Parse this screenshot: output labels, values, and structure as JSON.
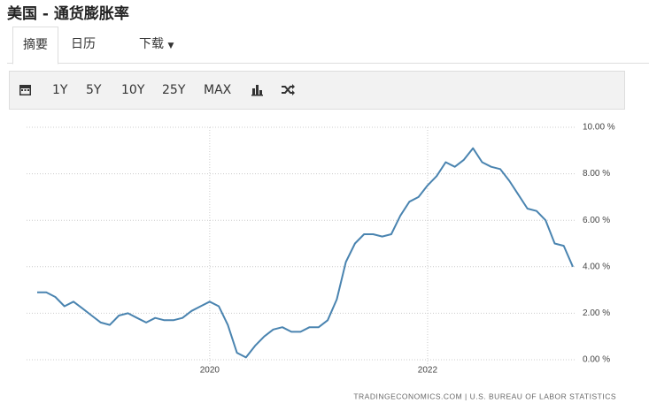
{
  "header": {
    "title": "美国 - 通货膨胀率"
  },
  "tabs": [
    "摘要",
    "日历",
    "下载"
  ],
  "toolbar": [
    "1Y",
    "5Y",
    "10Y",
    "25Y",
    "MAX"
  ],
  "chart_data": {
    "type": "line",
    "source": "TRADINGECONOMICS.COM  |  U.S. BUREAU OF LABOR STATISTICS",
    "categories": [
      null,
      null,
      null,
      null,
      null,
      null,
      null,
      null,
      null,
      null,
      null,
      null,
      null,
      null,
      null,
      null,
      null,
      null,
      null,
      "2020",
      null,
      null,
      null,
      null,
      null,
      null,
      null,
      null,
      null,
      null,
      null,
      null,
      null,
      null,
      null,
      null,
      null,
      null,
      null,
      null,
      null,
      null,
      null,
      "2022",
      null,
      null,
      null,
      null,
      null,
      null,
      null,
      null,
      null,
      null,
      null,
      null,
      null,
      null,
      null,
      null
    ],
    "series": [
      {
        "name": "US Inflation Rate",
        "color": "#4a84b0",
        "values": [
          2.9,
          2.9,
          2.7,
          2.3,
          2.5,
          2.2,
          1.9,
          1.6,
          1.5,
          1.9,
          2.0,
          1.8,
          1.6,
          1.8,
          1.7,
          1.7,
          1.8,
          2.1,
          2.3,
          2.5,
          2.3,
          1.5,
          0.3,
          0.1,
          0.6,
          1.0,
          1.3,
          1.4,
          1.2,
          1.2,
          1.4,
          1.4,
          1.7,
          2.6,
          4.2,
          5.0,
          5.4,
          5.4,
          5.3,
          5.4,
          6.2,
          6.8,
          7.0,
          7.5,
          7.9,
          8.5,
          8.3,
          8.6,
          9.1,
          8.5,
          8.3,
          8.2,
          7.7,
          7.1,
          6.5,
          6.4,
          6.0,
          5.0,
          4.9,
          4.0
        ]
      }
    ],
    "ylim": [
      0,
      10
    ],
    "yticks": [
      {
        "value": 0,
        "label": "0.00 %"
      },
      {
        "value": 2,
        "label": "2.00 %"
      },
      {
        "value": 4,
        "label": "4.00 %"
      },
      {
        "value": 6,
        "label": "6.00 %"
      },
      {
        "value": 8,
        "label": "8.00 %"
      },
      {
        "value": 10,
        "label": "10.00 %"
      }
    ],
    "grid": true
  }
}
